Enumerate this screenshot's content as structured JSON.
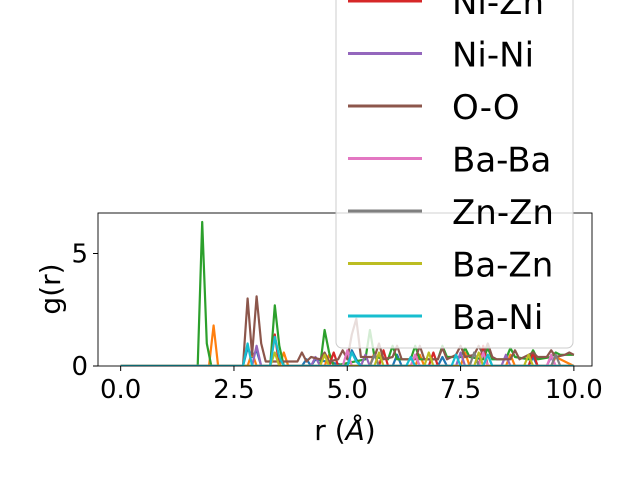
{
  "chart_data": {
    "type": "line",
    "xlabel": "r ($\\AA$)",
    "xlabel_parts": {
      "prefix": "r (",
      "symbol": "Å",
      "suffix": ")"
    },
    "ylabel": "g(r)",
    "xlim": [
      -0.5,
      10.4
    ],
    "ylim": [
      0,
      6.8
    ],
    "xticks": [
      0.0,
      2.5,
      5.0,
      7.5,
      10.0
    ],
    "xtick_labels": [
      "0.0",
      "2.5",
      "5.0",
      "7.5",
      "10.0"
    ],
    "yticks": [
      0,
      5
    ],
    "ytick_labels": [
      "0",
      "5"
    ],
    "legend_placement": "upper-right, extending above the axes",
    "series": [
      {
        "color": "#1f77b4",
        "x": [
          0,
          2.7,
          2.8,
          2.9,
          3.0,
          3.1,
          4.0,
          4.1,
          4.2,
          4.3,
          5.0,
          5.1,
          5.2,
          5.3,
          6.0,
          6.1,
          6.2,
          7.0,
          7.1,
          7.2,
          8.0,
          8.1,
          8.2,
          9.0,
          9.1,
          9.2,
          10.0
        ],
        "y": [
          0,
          0,
          0.8,
          0.4,
          0.7,
          0,
          0,
          0.3,
          0,
          0.3,
          0,
          0.7,
          0.3,
          0,
          0,
          0.5,
          0,
          0,
          0.4,
          0,
          0,
          0.5,
          0,
          0,
          0.4,
          0,
          0
        ]
      },
      {
        "color": "#ff7f0e",
        "x": [
          0,
          1.95,
          2.05,
          2.15,
          2.8,
          2.9,
          3.0,
          3.5,
          3.6,
          3.7,
          4.5,
          4.6,
          4.7,
          5.5,
          5.6,
          5.7,
          6.5,
          6.6,
          6.7,
          7.5,
          7.6,
          7.7,
          8.5,
          8.6,
          8.7,
          9.5,
          9.6,
          10.0
        ],
        "y": [
          0,
          0,
          1.8,
          0,
          0,
          0.6,
          0,
          0,
          0.6,
          0,
          0,
          0.5,
          0,
          0,
          0.6,
          0,
          0,
          0.5,
          0,
          0,
          0.6,
          0,
          0,
          0.5,
          0,
          0,
          0.4,
          0
        ]
      },
      {
        "color": "#2ca02c",
        "x": [
          0,
          1.7,
          1.8,
          1.9,
          2.0,
          3.3,
          3.4,
          3.5,
          3.6,
          4.4,
          4.5,
          4.6,
          4.7,
          5.4,
          5.5,
          5.6,
          5.9,
          6.0,
          6.1,
          6.4,
          6.5,
          6.6,
          7.0,
          7.1,
          7.2,
          7.5,
          7.6,
          7.7,
          8.0,
          8.1,
          8.2,
          8.5,
          8.6,
          8.7,
          9.0,
          9.1,
          9.2,
          9.5,
          9.6,
          9.7,
          10.0
        ],
        "y": [
          0,
          0,
          6.4,
          1.0,
          0,
          0,
          2.7,
          0.9,
          0,
          0,
          1.6,
          0.6,
          0,
          0.3,
          1.6,
          0.4,
          0.3,
          0.9,
          0.3,
          0.3,
          0.9,
          0.3,
          0.3,
          0.9,
          0.4,
          0.4,
          0.8,
          0.4,
          0.3,
          0.8,
          0.3,
          0.3,
          0.8,
          0.4,
          0.3,
          0.7,
          0.3,
          0.4,
          0.6,
          0.5,
          0.5
        ]
      },
      {
        "color": "#d62728",
        "x": [
          0,
          3.3,
          3.4,
          3.5,
          4.6,
          4.7,
          4.8,
          5.7,
          5.8,
          5.9,
          6.8,
          6.9,
          7.0,
          7.9,
          8.0,
          8.1,
          9.0,
          9.1,
          9.2,
          10.0
        ],
        "y": [
          0,
          0,
          1.4,
          0,
          0,
          0.6,
          0,
          0,
          0.7,
          0,
          0,
          0.6,
          0,
          0,
          0.9,
          0,
          0,
          0.6,
          0,
          0
        ]
      },
      {
        "color": "#9467bd",
        "x": [
          0,
          2.9,
          3.0,
          3.1,
          4.2,
          4.3,
          4.4,
          5.3,
          5.4,
          5.5,
          6.4,
          6.5,
          6.6,
          7.4,
          7.5,
          7.6,
          8.4,
          8.5,
          8.6,
          9.4,
          9.5,
          9.6,
          10.0
        ],
        "y": [
          0,
          0,
          0.9,
          0,
          0,
          0.4,
          0,
          0,
          0.5,
          0,
          0,
          0.5,
          0,
          0,
          0.6,
          0,
          0,
          0.5,
          0,
          0,
          0.4,
          0,
          0
        ]
      },
      {
        "color": "#8c564b",
        "x": [
          0,
          2.7,
          2.8,
          2.9,
          3.0,
          3.1,
          3.2,
          3.9,
          4.0,
          4.1,
          4.2,
          4.4,
          4.5,
          4.6,
          4.8,
          4.9,
          5.0,
          5.1,
          5.2,
          5.3,
          5.6,
          5.7,
          5.8,
          6.0,
          6.1,
          6.2,
          6.5,
          6.6,
          6.7,
          7.0,
          7.1,
          7.2,
          7.4,
          7.5,
          7.6,
          7.8,
          7.9,
          8.0,
          8.1,
          8.2,
          8.3,
          8.6,
          8.7,
          8.8,
          9.0,
          9.1,
          9.2,
          9.4,
          9.5,
          9.6,
          9.8,
          9.9,
          10.0
        ],
        "y": [
          0,
          0,
          3.0,
          0.5,
          3.1,
          1.0,
          0.2,
          0.2,
          0.6,
          0.2,
          0.4,
          0.3,
          0.6,
          0.2,
          0.3,
          0.7,
          0.3,
          1.4,
          2.1,
          0.4,
          0.4,
          1.0,
          0.3,
          0.4,
          0.9,
          0.3,
          0.3,
          0.9,
          0.3,
          0.3,
          0.8,
          0.3,
          0.5,
          0.9,
          0.4,
          0.5,
          0.9,
          0.5,
          1.0,
          0.4,
          0.3,
          0.3,
          0.7,
          0.3,
          0.5,
          0.6,
          0.4,
          0.4,
          0.7,
          0.4,
          0.5,
          0.6,
          0.5
        ]
      },
      {
        "color": "#e377c2",
        "x": [
          0,
          4.9,
          5.0,
          5.1,
          6.4,
          6.5,
          6.6,
          7.9,
          8.0,
          8.1,
          9.4,
          9.5,
          9.6,
          10.0
        ],
        "y": [
          0,
          0,
          0.7,
          0,
          0,
          0.5,
          0,
          0,
          0.6,
          0,
          0,
          0.5,
          0,
          0
        ]
      },
      {
        "color": "#7f7f7f",
        "x": [
          0,
          5.5,
          5.6,
          5.7,
          7.7,
          7.8,
          7.9,
          9.5,
          9.6,
          9.7,
          10.0
        ],
        "y": [
          0,
          0,
          0.5,
          0,
          0,
          0.6,
          0,
          0,
          0.5,
          0,
          0
        ]
      },
      {
        "color": "#bcbd22",
        "x": [
          0,
          3.3,
          3.4,
          3.5,
          4.4,
          4.5,
          4.6,
          5.6,
          5.7,
          5.8,
          6.7,
          6.8,
          6.9,
          7.8,
          7.9,
          8.0,
          8.9,
          9.0,
          9.1,
          10.0
        ],
        "y": [
          0,
          0,
          0.6,
          0,
          0,
          0.5,
          0,
          0,
          0.6,
          0,
          0,
          0.6,
          0,
          0,
          0.6,
          0,
          0,
          0.5,
          0,
          0
        ]
      },
      {
        "name": "Ba-Ni",
        "color": "#17becf",
        "x": [
          0,
          2.7,
          2.8,
          2.9,
          3.3,
          3.4,
          3.5,
          3.6,
          5.0,
          5.1,
          5.2,
          5.3,
          6.3,
          6.4,
          6.5,
          7.3,
          7.4,
          7.5,
          8.0,
          8.1,
          8.2,
          10.0
        ],
        "y": [
          0,
          0,
          1.0,
          0,
          0,
          1.3,
          0.4,
          0,
          0,
          0.6,
          0.2,
          0,
          0,
          0.4,
          0,
          0,
          0.5,
          0,
          0,
          0.5,
          0,
          0
        ]
      }
    ],
    "legend_entries": [
      {
        "label": "Ni-Zn",
        "color": "#d62728"
      },
      {
        "label": "Ni-Ni",
        "color": "#9467bd"
      },
      {
        "label": "O-O",
        "color": "#8c564b"
      },
      {
        "label": "Ba-Ba",
        "color": "#e377c2"
      },
      {
        "label": "Zn-Zn",
        "color": "#7f7f7f"
      },
      {
        "label": "Ba-Zn",
        "color": "#bcbd22"
      },
      {
        "label": "Ba-Ni",
        "color": "#17becf"
      }
    ]
  }
}
